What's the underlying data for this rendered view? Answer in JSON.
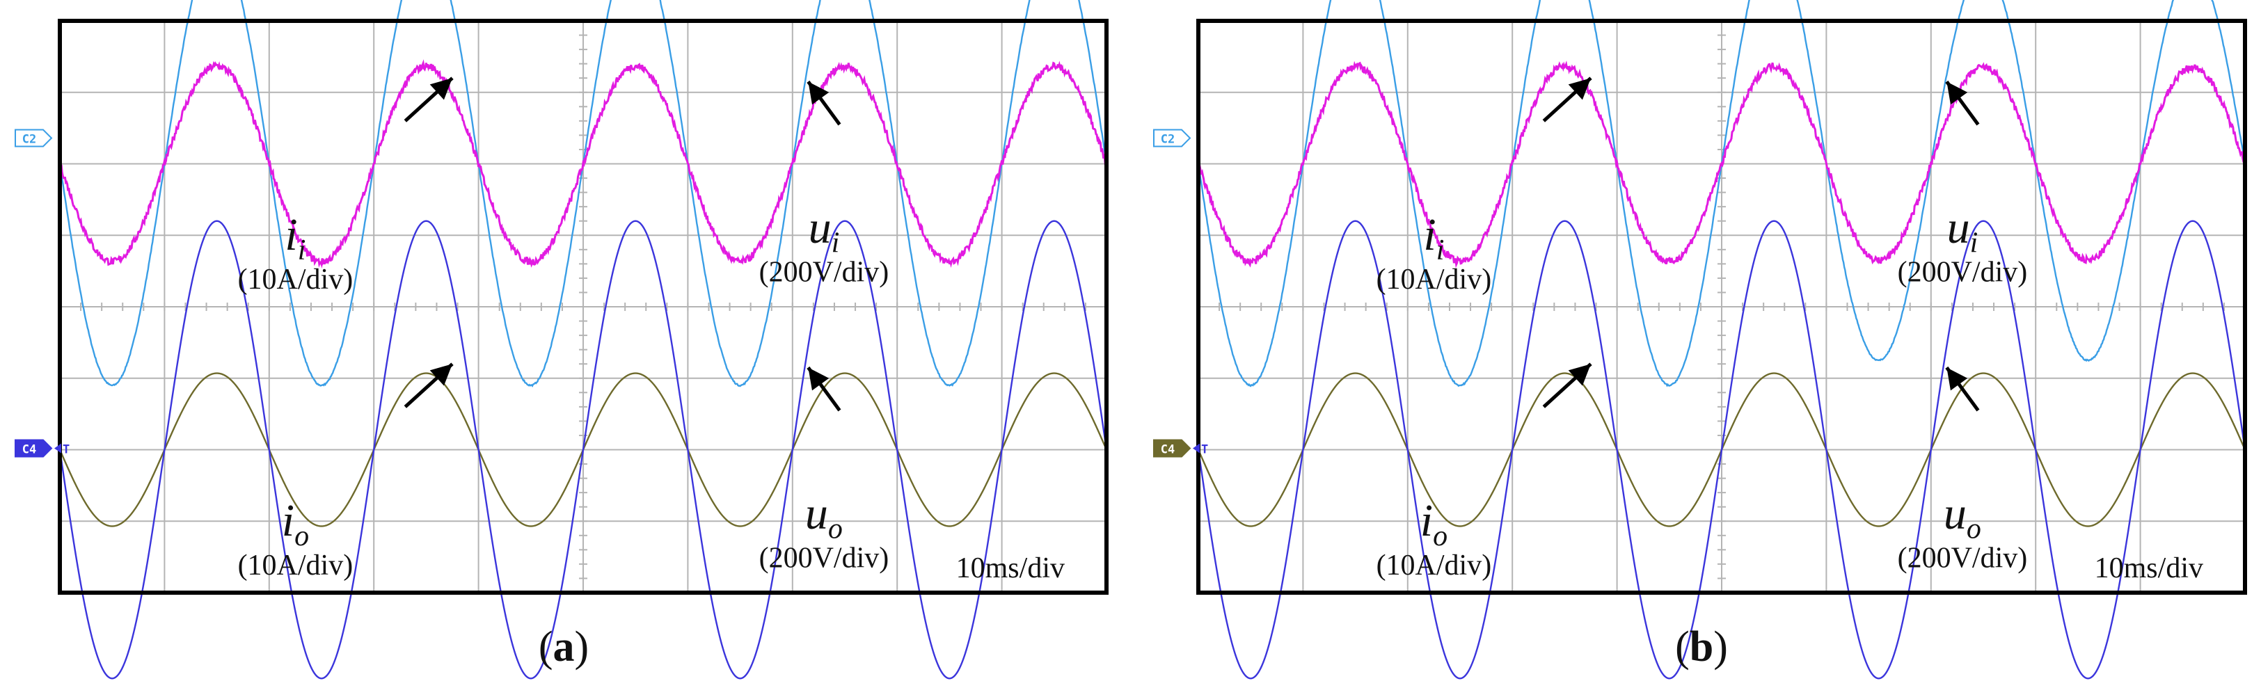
{
  "colors": {
    "input_voltage": "#3a9ee6",
    "input_current": "#e21be1",
    "output_voltage": "#3b35dc",
    "output_current": "#6e6a2c",
    "marker_line": "#e01010",
    "grid": "#b4b4b4",
    "frame": "#000000",
    "annotation": "#000000"
  },
  "chart_data": [
    {
      "id": "a",
      "type": "line",
      "caption": {
        "open": "(",
        "letter": "a",
        "close": ")"
      },
      "time_per_div": "10ms/div",
      "x_unit": "ms",
      "xlim": [
        0,
        100
      ],
      "grid": true,
      "grid_divisions": {
        "x": 10,
        "y": 8
      },
      "channel_markers": [
        {
          "label": "C2",
          "channel": "input_voltage",
          "filled": false,
          "trigger": false
        },
        {
          "label": "C4",
          "channel": "output_voltage",
          "filled": true,
          "trigger": true,
          "trigger_label": "T"
        }
      ],
      "series": [
        {
          "label_symbol": "u",
          "label_sub": "i",
          "label_unit": "(200V/div)",
          "channel": "input_voltage",
          "trace": "upper",
          "amplitude_div": 3.1,
          "frequency_hz": 50,
          "phase_deg": 0,
          "noise": 0.01
        },
        {
          "label_symbol": "i",
          "label_sub": "i",
          "label_unit": "(10A/div)",
          "channel": "input_current",
          "trace": "upper",
          "amplitude_div": 1.37,
          "frequency_hz": 50,
          "phase_deg": 0,
          "noise": 0.05
        },
        {
          "label_symbol": "u",
          "label_sub": "o",
          "label_unit": "(200V/div)",
          "channel": "output_current",
          "trace": "lower",
          "amplitude_div": 1.07,
          "frequency_hz": 50,
          "phase_deg": 0,
          "noise": 0.0
        },
        {
          "label_symbol": "i",
          "label_sub": "o",
          "label_unit": "(10A/div)",
          "channel": "output_voltage",
          "trace": "lower",
          "amplitude_div": 3.2,
          "frequency_hz": 50,
          "phase_deg": 0,
          "noise": 0.0
        }
      ],
      "marker_line": {
        "from_ms": 55,
        "to_ms": 100,
        "level_div": 3.6
      }
    },
    {
      "id": "b",
      "type": "line",
      "caption": {
        "open": "(",
        "letter": "b",
        "close": ")"
      },
      "time_per_div": "10ms/div",
      "x_unit": "ms",
      "xlim": [
        0,
        100
      ],
      "grid": true,
      "grid_divisions": {
        "x": 10,
        "y": 8
      },
      "channel_markers": [
        {
          "label": "C2",
          "channel": "input_voltage",
          "filled": false,
          "trigger": false
        },
        {
          "label": "C4",
          "channel": "output_current",
          "filled": true,
          "trigger": true,
          "trigger_label": "T"
        }
      ],
      "series": [
        {
          "label_symbol": "u",
          "label_sub": "i",
          "label_unit": "(200V/div)",
          "channel": "input_voltage",
          "trace": "upper",
          "amplitude_div": 3.1,
          "amplitude_end_div": 2.75,
          "frequency_hz": 50,
          "phase_deg": 0,
          "noise": 0.01
        },
        {
          "label_symbol": "i",
          "label_sub": "i",
          "label_unit": "(10A/div)",
          "channel": "input_current",
          "trace": "upper",
          "amplitude_div": 1.37,
          "amplitude_end_div": 1.35,
          "frequency_hz": 50,
          "phase_deg": 0,
          "noise": 0.05
        },
        {
          "label_symbol": "u",
          "label_sub": "o",
          "label_unit": "(200V/div)",
          "channel": "output_current",
          "trace": "lower",
          "amplitude_div": 1.07,
          "frequency_hz": 50,
          "phase_deg": 0,
          "noise": 0.0
        },
        {
          "label_symbol": "i",
          "label_sub": "o",
          "label_unit": "(10A/div)",
          "channel": "output_voltage",
          "trace": "lower",
          "amplitude_div": 3.2,
          "frequency_hz": 50,
          "phase_deg": 0,
          "noise": 0.0
        }
      ],
      "marker_line": {
        "from_ms": 55,
        "to_ms": 100,
        "level_div": 3.05
      }
    }
  ]
}
